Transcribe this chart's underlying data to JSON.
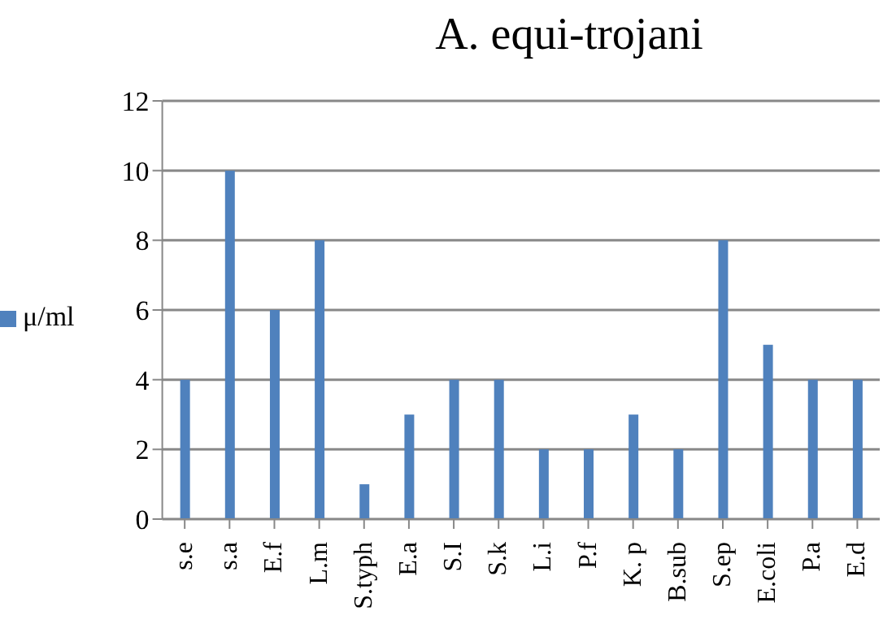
{
  "chart_data": {
    "type": "bar",
    "title": "A. equi-trojani",
    "categories": [
      "s.e",
      "s.a",
      "E.f",
      "L.m",
      "S.typh",
      "E.a",
      "S.I",
      "S.k",
      "L.i",
      "P.f",
      "K. p",
      "B.sub",
      "S.ep",
      "E.coli",
      "P.a",
      "E.d"
    ],
    "series": [
      {
        "name": "μ/ml",
        "color": "#4f81bd",
        "values": [
          4,
          10,
          6,
          8,
          1,
          3,
          4,
          4,
          2,
          2,
          3,
          2,
          8,
          5,
          4,
          4
        ]
      }
    ],
    "ylim": [
      0,
      12
    ],
    "yticks": [
      0,
      2,
      4,
      6,
      8,
      10,
      12
    ],
    "grid": "y",
    "legend": "left"
  }
}
